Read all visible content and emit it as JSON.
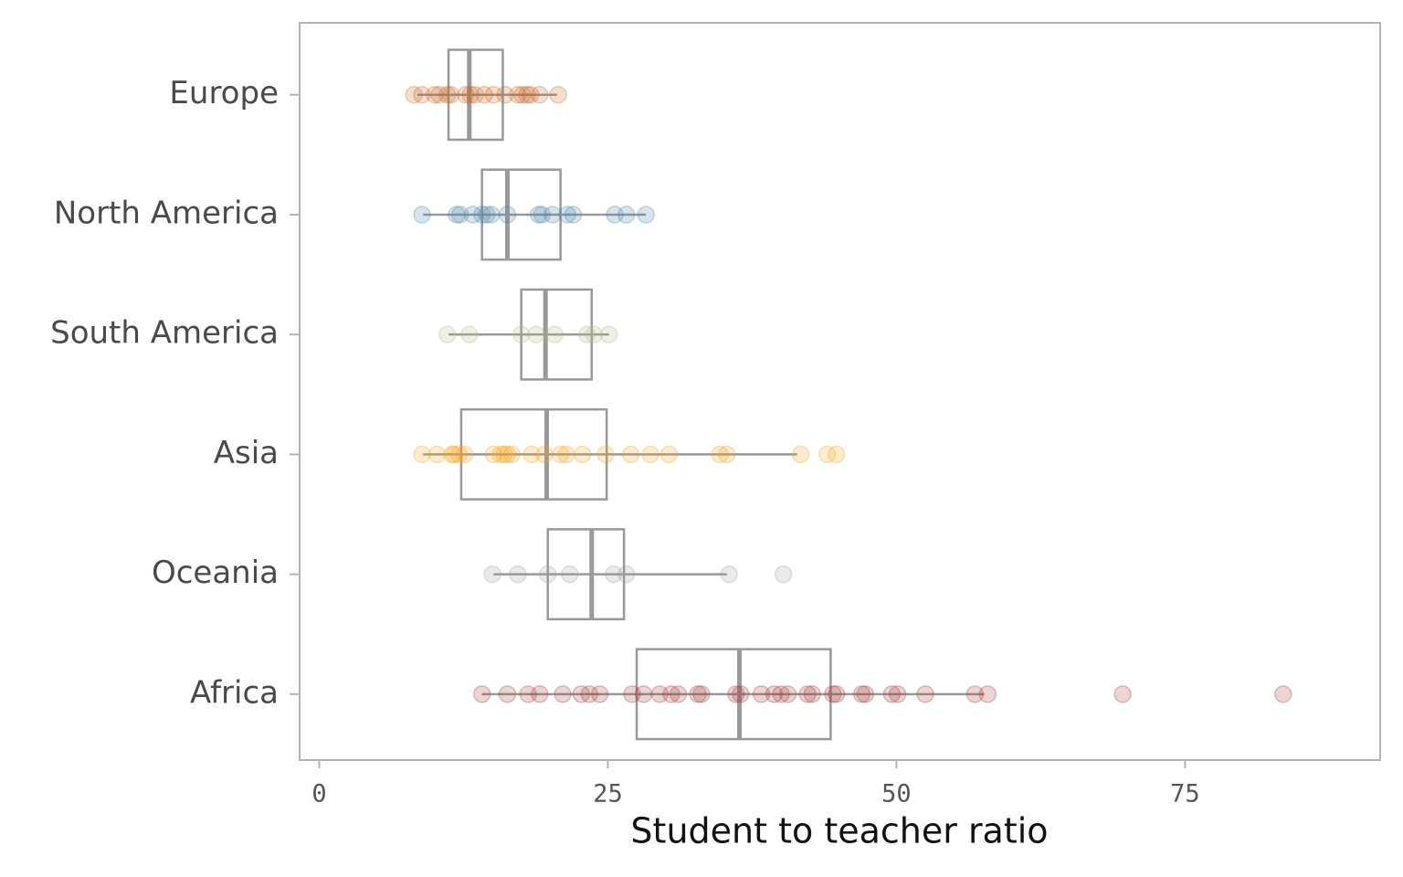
{
  "chart_data": {
    "type": "boxplot",
    "orientation": "horizontal",
    "x_label": "Student to teacher ratio",
    "xlim": [
      -1.7,
      91.9
    ],
    "xticks": [
      0,
      25,
      50,
      75
    ],
    "box_color": "#999999",
    "groups": [
      {
        "name": "Europe",
        "color": "#c8692a",
        "whisker_low": 8.5,
        "q1": 11.2,
        "median": 13.0,
        "q3": 15.9,
        "whisker_high": 20.6,
        "points": [
          8.2,
          8.9,
          10.0,
          10.4,
          11.1,
          11.4,
          12.7,
          13.1,
          13.5,
          14.3,
          15.1,
          16.1,
          17.2,
          17.6,
          18.0,
          18.3,
          19.1,
          20.7
        ]
      },
      {
        "name": "North America",
        "color": "#4f86a8",
        "whisker_low": 9.0,
        "q1": 14.1,
        "median": 16.3,
        "q3": 20.9,
        "whisker_high": 28.3,
        "points": [
          8.9,
          11.9,
          12.2,
          13.3,
          14.1,
          14.5,
          14.9,
          16.3,
          19.0,
          19.3,
          20.2,
          21.5,
          22.0,
          25.6,
          26.6,
          28.3
        ]
      },
      {
        "name": "South America",
        "color": "#b5bb86",
        "whisker_low": 11.2,
        "q1": 17.5,
        "median": 19.6,
        "q3": 23.6,
        "whisker_high": 25.1,
        "points": [
          11.1,
          13.0,
          17.5,
          18.8,
          20.4,
          23.2,
          23.8,
          25.1
        ]
      },
      {
        "name": "Asia",
        "color": "#f5a623",
        "whisker_low": 9.0,
        "q1": 12.3,
        "median": 19.7,
        "q3": 24.9,
        "whisker_high": 41.4,
        "points": [
          8.9,
          10.2,
          11.5,
          11.7,
          12.1,
          12.6,
          15.1,
          15.7,
          16.0,
          16.3,
          16.7,
          18.4,
          19.5,
          20.9,
          21.4,
          22.8,
          24.8,
          27.0,
          28.7,
          30.3,
          34.7,
          35.3,
          41.7,
          44.0,
          44.8
        ]
      },
      {
        "name": "Oceania",
        "color": "#a0a0a0",
        "whisker_low": 15.1,
        "q1": 19.8,
        "median": 23.6,
        "q3": 26.4,
        "whisker_high": 35.3,
        "points": [
          15.0,
          17.2,
          19.8,
          21.7,
          25.5,
          26.6,
          35.5,
          40.2
        ]
      },
      {
        "name": "Africa",
        "color": "#a33a3a",
        "whisker_low": 14.1,
        "q1": 27.5,
        "median": 36.4,
        "q3": 44.3,
        "whisker_high": 57.6,
        "points": [
          14.1,
          16.3,
          18.1,
          19.1,
          21.1,
          22.7,
          23.4,
          24.3,
          27.1,
          28.1,
          29.5,
          30.5,
          31.1,
          32.8,
          33.1,
          36.1,
          36.5,
          38.3,
          39.4,
          40.0,
          40.6,
          42.3,
          42.7,
          44.5,
          44.8,
          47.0,
          47.3,
          49.6,
          50.1,
          52.5,
          56.8,
          57.9,
          69.6,
          83.5
        ]
      }
    ]
  }
}
